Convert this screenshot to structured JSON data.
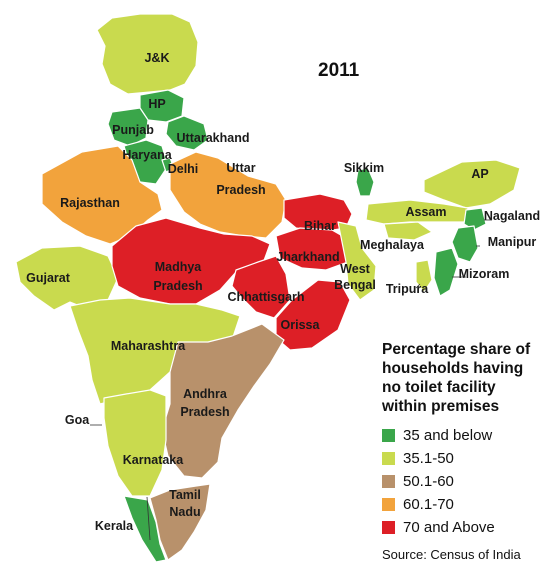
{
  "year": "2011",
  "legend": {
    "title_lines": [
      "Percentage share of",
      "households having",
      "no toilet facility",
      "within premises"
    ],
    "items": [
      {
        "label": "35 and below",
        "color": "#3aa64a"
      },
      {
        "label": "35.1-50",
        "color": "#c9da4e"
      },
      {
        "label": "50.1-60",
        "color": "#b8916b"
      },
      {
        "label": "60.1-70",
        "color": "#f2a33c"
      },
      {
        "label": "70 and Above",
        "color": "#dd1f26"
      }
    ]
  },
  "source": "Source: Census of India",
  "regions": [
    {
      "name": "J&K",
      "label": "J&K",
      "category": "35.1-50"
    },
    {
      "name": "HP",
      "label": "HP",
      "category": "35 and below"
    },
    {
      "name": "Punjab",
      "label": "Punjab",
      "category": "35 and below"
    },
    {
      "name": "Uttarakhand",
      "label": "Uttarakhand",
      "category": "35 and below"
    },
    {
      "name": "Haryana",
      "label": "Haryana",
      "category": "35 and below"
    },
    {
      "name": "Delhi",
      "label": "Delhi",
      "category": "35 and below"
    },
    {
      "name": "Rajasthan",
      "label": "Rajasthan",
      "category": "60.1-70"
    },
    {
      "name": "Uttar Pradesh",
      "label": "Uttar\nPradesh",
      "category": "60.1-70"
    },
    {
      "name": "Bihar",
      "label": "Bihar",
      "category": "70 and Above"
    },
    {
      "name": "Sikkim",
      "label": "Sikkim",
      "category": "35 and below"
    },
    {
      "name": "AP",
      "label": "AP",
      "category": "35.1-50"
    },
    {
      "name": "Assam",
      "label": "Assam",
      "category": "35.1-50"
    },
    {
      "name": "Nagaland",
      "label": "Nagaland",
      "category": "35 and below"
    },
    {
      "name": "Meghalaya",
      "label": "Meghalaya",
      "category": "35.1-50"
    },
    {
      "name": "Manipur",
      "label": "Manipur",
      "category": "35 and below"
    },
    {
      "name": "Mizoram",
      "label": "Mizoram",
      "category": "35 and below"
    },
    {
      "name": "Tripura",
      "label": "Tripura",
      "category": "35.1-50"
    },
    {
      "name": "Jharkhand",
      "label": "Jharkhand",
      "category": "70 and Above"
    },
    {
      "name": "West Bengal",
      "label": "West\nBengal",
      "category": "35.1-50"
    },
    {
      "name": "Gujarat",
      "label": "Gujarat",
      "category": "35.1-50"
    },
    {
      "name": "Madhya Pradesh",
      "label": "Madhya\nPradesh",
      "category": "70 and Above"
    },
    {
      "name": "Chhattisgarh",
      "label": "Chhattisgarh",
      "category": "70 and Above"
    },
    {
      "name": "Orissa",
      "label": "Orissa",
      "category": "70 and Above"
    },
    {
      "name": "Maharashtra",
      "label": "Maharashtra",
      "category": "35.1-50"
    },
    {
      "name": "Andhra Pradesh",
      "label": "Andhra\nPradesh",
      "category": "50.1-60"
    },
    {
      "name": "Goa",
      "label": "Goa",
      "category": "35 and below"
    },
    {
      "name": "Karnataka",
      "label": "Karnataka",
      "category": "35.1-50"
    },
    {
      "name": "Tamil Nadu",
      "label": "Tamil\nNadu",
      "category": "50.1-60"
    },
    {
      "name": "Kerala",
      "label": "Kerala",
      "category": "35 and below"
    }
  ]
}
